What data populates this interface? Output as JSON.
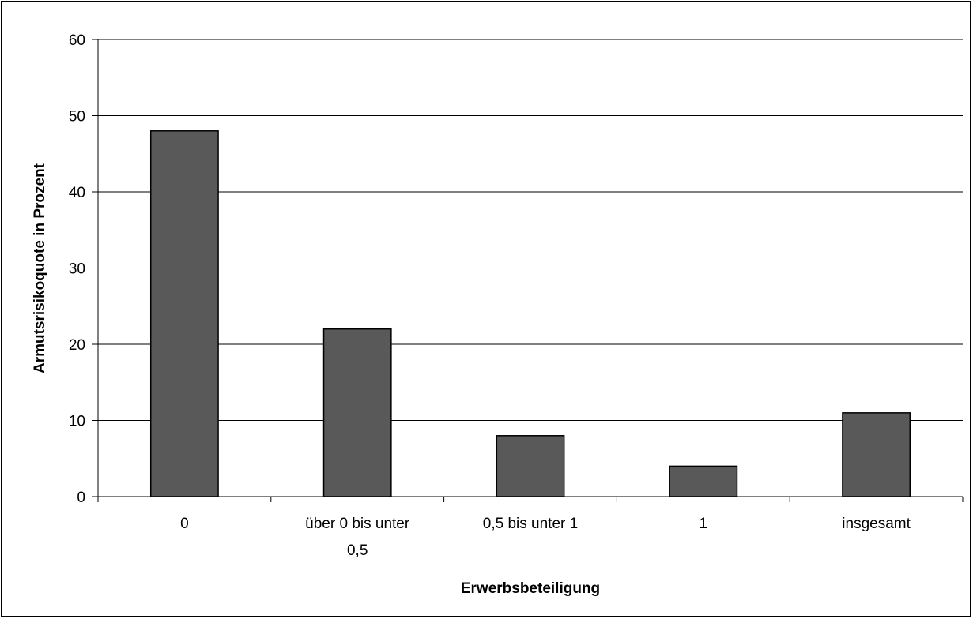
{
  "chart_data": {
    "type": "bar",
    "categories": [
      [
        "0"
      ],
      [
        "über 0 bis unter",
        "0,5"
      ],
      [
        "0,5 bis unter 1"
      ],
      [
        "1"
      ],
      [
        "insgesamt"
      ]
    ],
    "values": [
      48,
      22,
      8,
      4,
      11
    ],
    "title": "",
    "xlabel": "Erwerbsbeteiligung",
    "ylabel": "Armutsrisikoquote in Prozent",
    "ylim": [
      0,
      60
    ],
    "yticks": [
      "0",
      "10",
      "20",
      "30",
      "40",
      "50",
      "60"
    ],
    "grid": true,
    "legend": "none",
    "colors": {
      "bar": "#595959",
      "bar_stroke": "#000000",
      "grid": "#000000"
    }
  }
}
